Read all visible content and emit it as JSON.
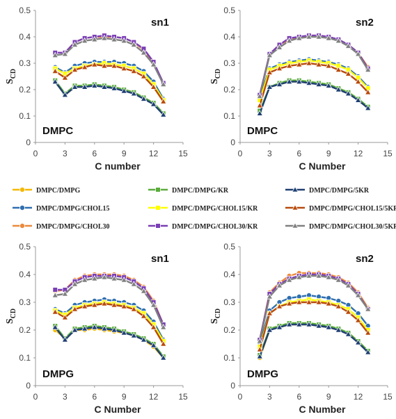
{
  "chart_data": [
    {
      "type": "line",
      "panel": "top-left",
      "membrane_label": "DMPC",
      "chain_label": "sn1",
      "xlabel": "C number",
      "ylabel_main": "S",
      "ylabel_sub": "CD",
      "xlim": [
        0,
        15
      ],
      "ylim": [
        0,
        0.5
      ],
      "xticks": [
        "0",
        "3",
        "6",
        "9",
        "12",
        "15"
      ],
      "yticks": [
        "0",
        "0.1",
        "0.2",
        "0.3",
        "0.4",
        "0.5"
      ],
      "x": [
        2,
        3,
        4,
        5,
        6,
        7,
        8,
        9,
        10,
        11,
        12,
        13
      ],
      "series": [
        {
          "name": "DMPC/DMPG",
          "color": "#f5b800",
          "marker": "circle",
          "values": [
            0.23,
            0.18,
            0.21,
            0.21,
            0.22,
            0.21,
            0.21,
            0.2,
            0.19,
            0.17,
            0.15,
            0.11
          ]
        },
        {
          "name": "DMPC/DMPG/KR",
          "color": "#5aac3c",
          "marker": "square",
          "values": [
            0.235,
            0.185,
            0.215,
            0.215,
            0.22,
            0.215,
            0.21,
            0.2,
            0.19,
            0.17,
            0.15,
            0.11
          ]
        },
        {
          "name": "DMPC/DMPG/5KR",
          "color": "#1f3f73",
          "marker": "triangle",
          "values": [
            0.23,
            0.18,
            0.21,
            0.21,
            0.215,
            0.21,
            0.205,
            0.195,
            0.185,
            0.165,
            0.145,
            0.105
          ]
        },
        {
          "name": "DMPC/DMPG/CHOL15",
          "color": "#2f6fb0",
          "marker": "circle",
          "values": [
            0.285,
            0.265,
            0.29,
            0.3,
            0.305,
            0.305,
            0.305,
            0.3,
            0.29,
            0.27,
            0.23,
            0.165
          ]
        },
        {
          "name": "DMPC/DMPG/CHOL15/KR",
          "color": "#ffff00",
          "marker": "square",
          "values": [
            0.28,
            0.26,
            0.28,
            0.29,
            0.295,
            0.3,
            0.295,
            0.29,
            0.28,
            0.26,
            0.22,
            0.16
          ]
        },
        {
          "name": "DMPC/DMPG/CHOL15/5KR",
          "color": "#b84a0c",
          "marker": "triangle",
          "values": [
            0.27,
            0.245,
            0.275,
            0.285,
            0.295,
            0.29,
            0.29,
            0.28,
            0.27,
            0.25,
            0.21,
            0.155
          ]
        },
        {
          "name": "DMPC/DMPG/CHOL30",
          "color": "#ec8a3b",
          "marker": "circle",
          "values": [
            0.34,
            0.34,
            0.38,
            0.395,
            0.4,
            0.4,
            0.4,
            0.395,
            0.38,
            0.35,
            0.3,
            0.225
          ]
        },
        {
          "name": "DMPC/DMPG/CHOL30/KR",
          "color": "#7a3fb3",
          "marker": "square",
          "values": [
            0.34,
            0.34,
            0.38,
            0.395,
            0.4,
            0.405,
            0.4,
            0.395,
            0.38,
            0.355,
            0.305,
            0.225
          ]
        },
        {
          "name": "DMPC/DMPG/CHOL30/5KR",
          "color": "#808080",
          "marker": "triangle",
          "values": [
            0.33,
            0.335,
            0.37,
            0.385,
            0.39,
            0.395,
            0.39,
            0.385,
            0.37,
            0.34,
            0.295,
            0.22
          ]
        }
      ]
    },
    {
      "type": "line",
      "panel": "top-right",
      "membrane_label": "DMPC",
      "chain_label": "sn2",
      "xlabel": "C Number",
      "ylabel_main": "S",
      "ylabel_sub": "CD",
      "xlim": [
        0,
        15
      ],
      "ylim": [
        0,
        0.5
      ],
      "xticks": [
        "0",
        "3",
        "6",
        "9",
        "12",
        "15"
      ],
      "yticks": [
        "0",
        "0.1",
        "0.2",
        "0.3",
        "0.4",
        "0.5"
      ],
      "x": [
        2,
        3,
        4,
        5,
        6,
        7,
        8,
        9,
        10,
        11,
        12,
        13
      ],
      "series": [
        {
          "name": "DMPC/DMPG",
          "color": "#f5b800",
          "marker": "circle",
          "values": [
            0.12,
            0.21,
            0.22,
            0.23,
            0.23,
            0.23,
            0.22,
            0.22,
            0.2,
            0.19,
            0.16,
            0.13
          ]
        },
        {
          "name": "DMPC/DMPG/KR",
          "color": "#5aac3c",
          "marker": "square",
          "values": [
            0.12,
            0.21,
            0.225,
            0.235,
            0.235,
            0.23,
            0.225,
            0.22,
            0.205,
            0.19,
            0.165,
            0.135
          ]
        },
        {
          "name": "DMPC/DMPG/5KR",
          "color": "#1f3f73",
          "marker": "triangle",
          "values": [
            0.11,
            0.21,
            0.22,
            0.23,
            0.23,
            0.225,
            0.22,
            0.215,
            0.2,
            0.185,
            0.16,
            0.13
          ]
        },
        {
          "name": "DMPC/DMPG/CHOL15",
          "color": "#2f6fb0",
          "marker": "circle",
          "values": [
            0.17,
            0.28,
            0.295,
            0.305,
            0.31,
            0.315,
            0.31,
            0.305,
            0.295,
            0.28,
            0.25,
            0.21
          ]
        },
        {
          "name": "DMPC/DMPG/CHOL15/KR",
          "color": "#ffff00",
          "marker": "square",
          "values": [
            0.16,
            0.275,
            0.29,
            0.3,
            0.305,
            0.31,
            0.305,
            0.3,
            0.29,
            0.275,
            0.245,
            0.205
          ]
        },
        {
          "name": "DMPC/DMPG/CHOL15/5KR",
          "color": "#b84a0c",
          "marker": "triangle",
          "values": [
            0.14,
            0.265,
            0.28,
            0.29,
            0.295,
            0.3,
            0.295,
            0.29,
            0.275,
            0.26,
            0.23,
            0.19
          ]
        },
        {
          "name": "DMPC/DMPG/CHOL30",
          "color": "#ec8a3b",
          "marker": "circle",
          "values": [
            0.18,
            0.335,
            0.37,
            0.39,
            0.4,
            0.405,
            0.405,
            0.4,
            0.39,
            0.37,
            0.34,
            0.285
          ]
        },
        {
          "name": "DMPC/DMPG/CHOL30/KR",
          "color": "#7a3fb3",
          "marker": "square",
          "values": [
            0.18,
            0.335,
            0.37,
            0.395,
            0.4,
            0.405,
            0.405,
            0.4,
            0.39,
            0.37,
            0.34,
            0.28
          ]
        },
        {
          "name": "DMPC/DMPG/CHOL30/5KR",
          "color": "#808080",
          "marker": "triangle",
          "values": [
            0.175,
            0.33,
            0.36,
            0.385,
            0.395,
            0.4,
            0.4,
            0.395,
            0.385,
            0.365,
            0.335,
            0.275
          ]
        }
      ]
    },
    {
      "type": "line",
      "panel": "bottom-left",
      "membrane_label": "DMPG",
      "chain_label": "sn1",
      "xlabel": "C Number",
      "ylabel_main": "S",
      "ylabel_sub": "CD",
      "xlim": [
        0,
        15
      ],
      "ylim": [
        0,
        0.5
      ],
      "xticks": [
        "0",
        "3",
        "6",
        "9",
        "12",
        "15"
      ],
      "yticks": [
        "0",
        "0.1",
        "0.2",
        "0.3",
        "0.4",
        "0.5"
      ],
      "x": [
        2,
        3,
        4,
        5,
        6,
        7,
        8,
        9,
        10,
        11,
        12,
        13
      ],
      "series": [
        {
          "name": "DMPC/DMPG",
          "color": "#f5b800",
          "marker": "circle",
          "values": [
            0.2,
            0.17,
            0.2,
            0.2,
            0.205,
            0.2,
            0.195,
            0.19,
            0.18,
            0.165,
            0.14,
            0.1
          ]
        },
        {
          "name": "DMPC/DMPG/KR",
          "color": "#5aac3c",
          "marker": "square",
          "values": [
            0.215,
            0.17,
            0.205,
            0.21,
            0.215,
            0.21,
            0.205,
            0.195,
            0.185,
            0.17,
            0.15,
            0.105
          ]
        },
        {
          "name": "DMPC/DMPG/5KR",
          "color": "#1f3f73",
          "marker": "triangle",
          "values": [
            0.21,
            0.165,
            0.2,
            0.205,
            0.21,
            0.205,
            0.2,
            0.19,
            0.18,
            0.165,
            0.145,
            0.1
          ]
        },
        {
          "name": "DMPC/DMPG/CHOL15",
          "color": "#2f6fb0",
          "marker": "circle",
          "values": [
            0.275,
            0.26,
            0.29,
            0.3,
            0.305,
            0.31,
            0.305,
            0.3,
            0.29,
            0.27,
            0.23,
            0.165
          ]
        },
        {
          "name": "DMPC/DMPG/CHOL15/KR",
          "color": "#ffff00",
          "marker": "square",
          "values": [
            0.27,
            0.255,
            0.28,
            0.29,
            0.295,
            0.3,
            0.295,
            0.29,
            0.28,
            0.26,
            0.22,
            0.16
          ]
        },
        {
          "name": "DMPC/DMPG/CHOL15/5KR",
          "color": "#b84a0c",
          "marker": "triangle",
          "values": [
            0.265,
            0.245,
            0.275,
            0.285,
            0.29,
            0.295,
            0.29,
            0.285,
            0.275,
            0.25,
            0.21,
            0.15
          ]
        },
        {
          "name": "DMPC/DMPG/CHOL30",
          "color": "#ec8a3b",
          "marker": "circle",
          "values": [
            0.34,
            0.345,
            0.38,
            0.395,
            0.4,
            0.4,
            0.4,
            0.395,
            0.38,
            0.355,
            0.305,
            0.22
          ]
        },
        {
          "name": "DMPC/DMPG/CHOL30/KR",
          "color": "#7a3fb3",
          "marker": "square",
          "values": [
            0.345,
            0.345,
            0.375,
            0.39,
            0.395,
            0.395,
            0.395,
            0.39,
            0.375,
            0.35,
            0.3,
            0.22
          ]
        },
        {
          "name": "DMPC/DMPG/CHOL30/5KR",
          "color": "#808080",
          "marker": "triangle",
          "values": [
            0.325,
            0.33,
            0.365,
            0.38,
            0.385,
            0.39,
            0.385,
            0.38,
            0.365,
            0.34,
            0.29,
            0.21
          ]
        }
      ]
    },
    {
      "type": "line",
      "panel": "bottom-right",
      "membrane_label": "DMPG",
      "chain_label": "sn2",
      "xlabel": "C Number",
      "ylabel_main": "S",
      "ylabel_sub": "CD",
      "xlim": [
        0,
        15
      ],
      "ylim": [
        0,
        0.5
      ],
      "xticks": [
        "0",
        "3",
        "6",
        "9",
        "12",
        "15"
      ],
      "yticks": [
        "0",
        "0.1",
        "0.2",
        "0.3",
        "0.4",
        "0.5"
      ],
      "x": [
        2,
        3,
        4,
        5,
        6,
        7,
        8,
        9,
        10,
        11,
        12,
        13
      ],
      "series": [
        {
          "name": "DMPC/DMPG",
          "color": "#f5b800",
          "marker": "circle",
          "values": [
            0.1,
            0.2,
            0.21,
            0.22,
            0.22,
            0.22,
            0.215,
            0.21,
            0.2,
            0.19,
            0.16,
            0.125
          ]
        },
        {
          "name": "DMPC/DMPG/KR",
          "color": "#5aac3c",
          "marker": "square",
          "values": [
            0.11,
            0.205,
            0.215,
            0.225,
            0.225,
            0.225,
            0.22,
            0.215,
            0.205,
            0.19,
            0.16,
            0.125
          ]
        },
        {
          "name": "DMPC/DMPG/5KR",
          "color": "#1f3f73",
          "marker": "triangle",
          "values": [
            0.105,
            0.2,
            0.21,
            0.22,
            0.22,
            0.22,
            0.215,
            0.21,
            0.2,
            0.185,
            0.155,
            0.12
          ]
        },
        {
          "name": "DMPC/DMPG/CHOL15",
          "color": "#2f6fb0",
          "marker": "circle",
          "values": [
            0.15,
            0.27,
            0.3,
            0.315,
            0.32,
            0.325,
            0.32,
            0.315,
            0.305,
            0.29,
            0.26,
            0.215
          ]
        },
        {
          "name": "DMPC/DMPG/CHOL15/KR",
          "color": "#ffff00",
          "marker": "square",
          "values": [
            0.14,
            0.26,
            0.285,
            0.3,
            0.305,
            0.31,
            0.305,
            0.3,
            0.29,
            0.275,
            0.245,
            0.2
          ]
        },
        {
          "name": "DMPC/DMPG/CHOL15/5KR",
          "color": "#b84a0c",
          "marker": "triangle",
          "values": [
            0.13,
            0.26,
            0.285,
            0.295,
            0.3,
            0.3,
            0.3,
            0.295,
            0.285,
            0.265,
            0.235,
            0.19
          ]
        },
        {
          "name": "DMPC/DMPG/CHOL30",
          "color": "#ec8a3b",
          "marker": "circle",
          "values": [
            0.165,
            0.335,
            0.37,
            0.395,
            0.405,
            0.405,
            0.405,
            0.4,
            0.39,
            0.37,
            0.335,
            0.28
          ]
        },
        {
          "name": "DMPC/DMPG/CHOL30/KR",
          "color": "#7a3fb3",
          "marker": "square",
          "values": [
            0.165,
            0.33,
            0.365,
            0.385,
            0.395,
            0.4,
            0.4,
            0.395,
            0.385,
            0.365,
            0.33,
            0.275
          ]
        },
        {
          "name": "DMPC/DMPG/CHOL30/5KR",
          "color": "#808080",
          "marker": "triangle",
          "values": [
            0.16,
            0.32,
            0.36,
            0.38,
            0.39,
            0.395,
            0.395,
            0.39,
            0.38,
            0.36,
            0.325,
            0.275
          ]
        }
      ]
    }
  ],
  "legend": [
    {
      "name": "DMPC/DMPG",
      "color": "#f5b800",
      "marker": "circle"
    },
    {
      "name": "DMPC/DMPG/KR",
      "color": "#5aac3c",
      "marker": "square"
    },
    {
      "name": "DMPC/DMPG/5KR",
      "color": "#1f3f73",
      "marker": "triangle"
    },
    {
      "name": "DMPC/DMPG/CHOL15",
      "color": "#2f6fb0",
      "marker": "circle"
    },
    {
      "name": "DMPC/DMPG/CHOL15/KR",
      "color": "#ffff00",
      "marker": "square"
    },
    {
      "name": "DMPC/DMPG/CHOL15/5KR",
      "color": "#b84a0c",
      "marker": "triangle"
    },
    {
      "name": "DMPC/DMPG/CHOL30",
      "color": "#ec8a3b",
      "marker": "circle"
    },
    {
      "name": "DMPC/DMPG/CHOL30/KR",
      "color": "#7a3fb3",
      "marker": "square"
    },
    {
      "name": "DMPC/DMPG/CHOL30/5KR",
      "color": "#808080",
      "marker": "triangle"
    }
  ]
}
